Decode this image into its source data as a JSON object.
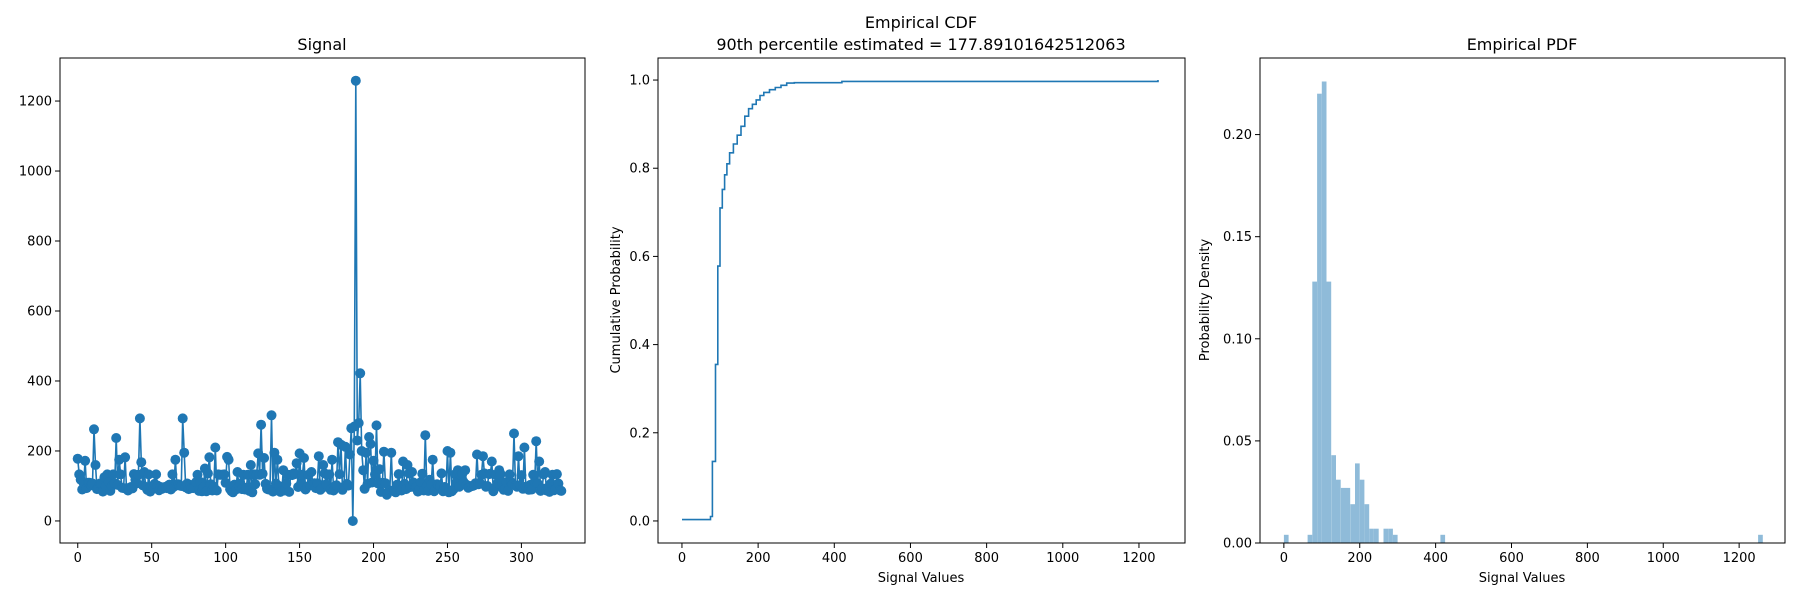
{
  "colors": {
    "line": "#1f77b4",
    "hist": "#8fbbd9"
  },
  "chart_data": [
    {
      "type": "line",
      "title": "Signal",
      "xlabel": "",
      "ylabel": "",
      "xlim": [
        -12,
        343
      ],
      "ylim": [
        -63,
        1323
      ],
      "xticks": [
        0,
        50,
        100,
        150,
        200,
        250,
        300
      ],
      "yticks": [
        0,
        200,
        400,
        600,
        800,
        1000,
        1200
      ],
      "n_points": 328,
      "baseline": 100,
      "spikes": [
        [
          0,
          178
        ],
        [
          2,
          118
        ],
        [
          5,
          172
        ],
        [
          11,
          262
        ],
        [
          12,
          160
        ],
        [
          18,
          125
        ],
        [
          26,
          237
        ],
        [
          28,
          175
        ],
        [
          32,
          182
        ],
        [
          39,
          118
        ],
        [
          42,
          293
        ],
        [
          43,
          168
        ],
        [
          45,
          140
        ],
        [
          66,
          175
        ],
        [
          71,
          293
        ],
        [
          72,
          195
        ],
        [
          86,
          150
        ],
        [
          89,
          182
        ],
        [
          93,
          210
        ],
        [
          101,
          183
        ],
        [
          102,
          175
        ],
        [
          108,
          140
        ],
        [
          117,
          160
        ],
        [
          122,
          193
        ],
        [
          124,
          275
        ],
        [
          126,
          180
        ],
        [
          131,
          302
        ],
        [
          133,
          195
        ],
        [
          135,
          175
        ],
        [
          139,
          145
        ],
        [
          148,
          165
        ],
        [
          150,
          193
        ],
        [
          153,
          180
        ],
        [
          158,
          140
        ],
        [
          163,
          185
        ],
        [
          166,
          160
        ],
        [
          172,
          175
        ],
        [
          176,
          225
        ],
        [
          178,
          218
        ],
        [
          181,
          212
        ],
        [
          184,
          190
        ],
        [
          185,
          265
        ],
        [
          186,
          0
        ],
        [
          187,
          270
        ],
        [
          188,
          1258
        ],
        [
          189,
          230
        ],
        [
          190,
          280
        ],
        [
          191,
          422
        ],
        [
          192,
          200
        ],
        [
          193,
          145
        ],
        [
          195,
          195
        ],
        [
          197,
          240
        ],
        [
          198,
          220
        ],
        [
          200,
          172
        ],
        [
          202,
          273
        ],
        [
          204,
          148
        ],
        [
          207,
          198
        ],
        [
          209,
          75
        ],
        [
          212,
          195
        ],
        [
          220,
          170
        ],
        [
          223,
          160
        ],
        [
          226,
          140
        ],
        [
          235,
          245
        ],
        [
          238,
          118
        ],
        [
          240,
          175
        ],
        [
          250,
          200
        ],
        [
          252,
          195
        ],
        [
          257,
          145
        ],
        [
          262,
          145
        ],
        [
          270,
          190
        ],
        [
          274,
          185
        ],
        [
          280,
          170
        ],
        [
          285,
          145
        ],
        [
          295,
          250
        ],
        [
          298,
          185
        ],
        [
          302,
          210
        ],
        [
          310,
          228
        ],
        [
          312,
          170
        ],
        [
          316,
          140
        ]
      ]
    },
    {
      "type": "step",
      "title": "Empirical CDF",
      "subtitle": "90th percentile estimated = 177.89101642512063",
      "xlabel": "Signal Values",
      "ylabel": "Cumulative Probability",
      "xlim": [
        -62.9,
        1320.9
      ],
      "ylim": [
        -0.05,
        1.05
      ],
      "xticks": [
        0,
        200,
        400,
        600,
        800,
        1000,
        1200
      ],
      "yticks": [
        0.0,
        0.2,
        0.4,
        0.6,
        0.8,
        1.0
      ],
      "ytick_format": 1,
      "x": [
        0,
        72,
        75,
        80,
        88,
        94,
        100,
        106,
        112,
        118,
        125,
        135,
        145,
        155,
        165,
        175,
        185,
        195,
        205,
        215,
        230,
        245,
        260,
        275,
        295,
        420,
        1250
      ],
      "y": [
        0.003,
        0.003,
        0.01,
        0.135,
        0.355,
        0.578,
        0.71,
        0.752,
        0.785,
        0.81,
        0.835,
        0.855,
        0.875,
        0.895,
        0.918,
        0.935,
        0.945,
        0.955,
        0.965,
        0.972,
        0.978,
        0.983,
        0.988,
        0.993,
        0.994,
        0.997,
        1.0
      ]
    },
    {
      "type": "histogram",
      "title": "Empirical PDF",
      "xlabel": "Signal Values",
      "ylabel": "Probability Density",
      "xlim": [
        -62.9,
        1320.9
      ],
      "ylim": [
        0,
        0.2375
      ],
      "xticks": [
        0,
        200,
        400,
        600,
        800,
        1000,
        1200
      ],
      "yticks": [
        0.0,
        0.05,
        0.1,
        0.15,
        0.2
      ],
      "ytick_format": 2,
      "bin_width": 12.5,
      "bins": [
        [
          0,
          0.004
        ],
        [
          62.5,
          0.004
        ],
        [
          75,
          0.128
        ],
        [
          87.5,
          0.22
        ],
        [
          100,
          0.226
        ],
        [
          112.5,
          0.128
        ],
        [
          125,
          0.043
        ],
        [
          137.5,
          0.031
        ],
        [
          150,
          0.027
        ],
        [
          162.5,
          0.027
        ],
        [
          175,
          0.019
        ],
        [
          187.5,
          0.039
        ],
        [
          200,
          0.031
        ],
        [
          212.5,
          0.019
        ],
        [
          225,
          0.007
        ],
        [
          237.5,
          0.007
        ],
        [
          262.5,
          0.007
        ],
        [
          275,
          0.007
        ],
        [
          287.5,
          0.004
        ],
        [
          412.5,
          0.004
        ],
        [
          1250,
          0.004
        ]
      ]
    }
  ]
}
